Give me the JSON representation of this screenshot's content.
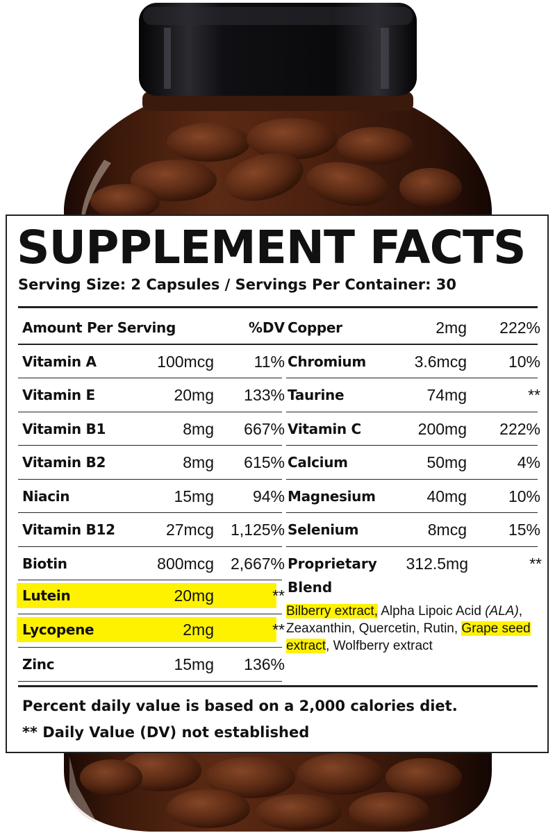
{
  "colors": {
    "highlight": "#fff200",
    "bottle": "#5a2a12",
    "cap": "#0c0c0e",
    "text": "#111111"
  },
  "label": {
    "title": "SUPPLEMENT FACTS",
    "serving": "Serving Size: 2 Capsules / Servings Per Container: 30",
    "header": {
      "name": "Amount Per Serving",
      "dv": "%DV"
    },
    "left_rows": [
      {
        "name": "Vitamin A",
        "amount": "100mcg",
        "dv": "11%"
      },
      {
        "name": "Vitamin E",
        "amount": "20mg",
        "dv": "133%"
      },
      {
        "name": "Vitamin B1",
        "amount": "8mg",
        "dv": "667%"
      },
      {
        "name": "Vitamin B2",
        "amount": "8mg",
        "dv": "615%"
      },
      {
        "name": "Niacin",
        "amount": "15mg",
        "dv": "94%"
      },
      {
        "name": "Vitamin B12",
        "amount": "27mcg",
        "dv": "1,125%"
      },
      {
        "name": "Biotin",
        "amount": "800mcg",
        "dv": "2,667%"
      },
      {
        "name": "Lutein",
        "amount": "20mg",
        "dv": "**",
        "highlighted": true
      },
      {
        "name": "Lycopene",
        "amount": "2mg",
        "dv": "**",
        "highlighted": true
      },
      {
        "name": "Zinc",
        "amount": "15mg",
        "dv": "136%"
      }
    ],
    "right_rows": [
      {
        "name": "Copper",
        "amount": "2mg",
        "dv": "222%"
      },
      {
        "name": "Chromium",
        "amount": "3.6mcg",
        "dv": "10%"
      },
      {
        "name": "Taurine",
        "amount": "74mg",
        "dv": "**"
      },
      {
        "name": "Vitamin C",
        "amount": "200mg",
        "dv": "222%"
      },
      {
        "name": "Calcium",
        "amount": "50mg",
        "dv": "4%"
      },
      {
        "name": "Magnesium",
        "amount": "40mg",
        "dv": "10%"
      },
      {
        "name": "Selenium",
        "amount": "8mcg",
        "dv": "15%"
      }
    ],
    "blend": {
      "name": "Proprietary Blend",
      "amount": "312.5mg",
      "dv": "**",
      "ingredients": {
        "bilberry": "Bilberry extract,",
        "ala": "Alpha Lipoic Acid",
        "ala_abbr": "(ALA)",
        "middle": ", Zeaxanthin, Quercetin, Rutin,",
        "grape": "Grape seed extract",
        "end": ", Wolfberry extract"
      }
    },
    "footnote_1": "Percent daily value is based on a 2,000 calories diet.",
    "footnote_2": "** Daily Value (DV) not established"
  }
}
